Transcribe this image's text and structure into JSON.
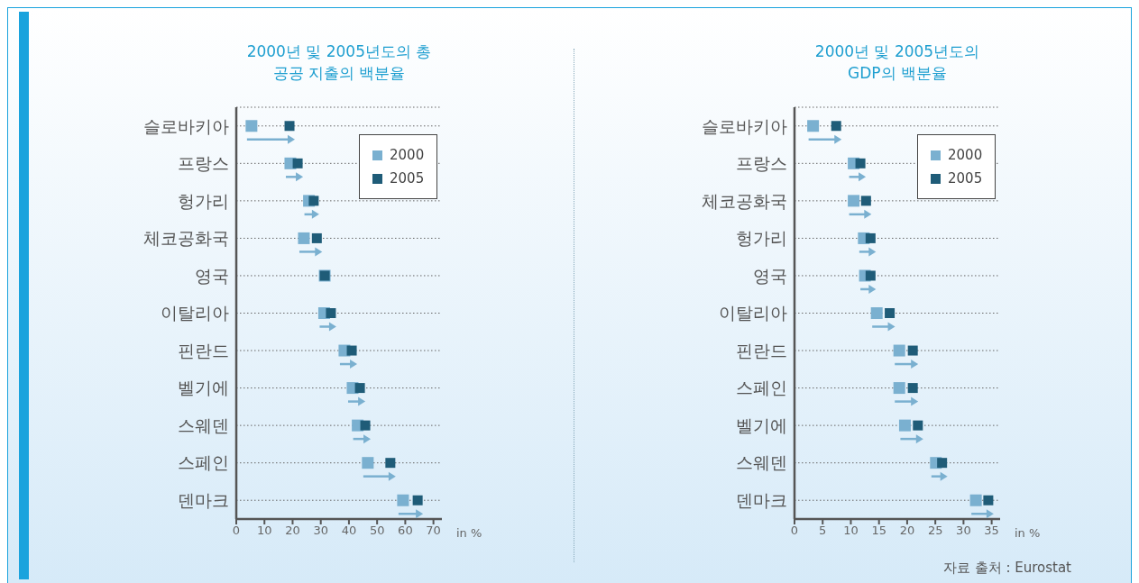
{
  "chart_data": [
    {
      "type": "scatter",
      "orientation": "horizontal",
      "title": "2000년 및 2005년도의 총\n공공 지출의 백분율",
      "xlabel": "in %",
      "categories": [
        "슬로바키아",
        "프랑스",
        "헝가리",
        "체코공화국",
        "영국",
        "이탈리아",
        "핀란드",
        "벨기에",
        "스웨덴",
        "스페인",
        "덴마크"
      ],
      "series": [
        {
          "name": "2000",
          "color": "#7ab0d0",
          "values": [
            5.4,
            19.2,
            25.8,
            24.0,
            31.4,
            31.2,
            38.4,
            41.3,
            43.1,
            46.7,
            59.2
          ]
        },
        {
          "name": "2005",
          "color": "#1f5c78",
          "values": [
            18.9,
            21.8,
            27.5,
            28.6,
            31.4,
            33.6,
            41.0,
            43.9,
            45.8,
            54.7,
            64.4
          ]
        }
      ],
      "xlim": [
        0,
        73
      ],
      "xticks": [
        0,
        10,
        20,
        30,
        40,
        50,
        60,
        70
      ],
      "grid": "y",
      "legend": "top right",
      "marker": "square"
    },
    {
      "type": "scatter",
      "orientation": "horizontal",
      "title": "2000년 및 2005년도의\nGDP의 백분율",
      "xlabel": "in %",
      "categories": [
        "슬로바키아",
        "프랑스",
        "체코공화국",
        "헝가리",
        "영국",
        "이탈리아",
        "핀란드",
        "스페인",
        "벨기에",
        "스웨덴",
        "덴마크"
      ],
      "series": [
        {
          "name": "2000",
          "color": "#7ab0d0",
          "values": [
            3.3,
            10.5,
            10.5,
            12.3,
            12.5,
            14.6,
            18.6,
            18.6,
            19.6,
            25.1,
            32.2
          ]
        },
        {
          "name": "2005",
          "color": "#1f5c78",
          "values": [
            7.4,
            11.7,
            12.7,
            13.5,
            13.5,
            16.9,
            21.0,
            21.0,
            21.9,
            26.2,
            34.4
          ]
        }
      ],
      "xlim": [
        0,
        36.5
      ],
      "xticks": [
        0,
        5,
        10,
        15,
        20,
        25,
        30,
        35
      ],
      "grid": "y",
      "legend": "top right",
      "marker": "square",
      "annotations": [
        "자료 출처 : Eurostat"
      ]
    }
  ]
}
